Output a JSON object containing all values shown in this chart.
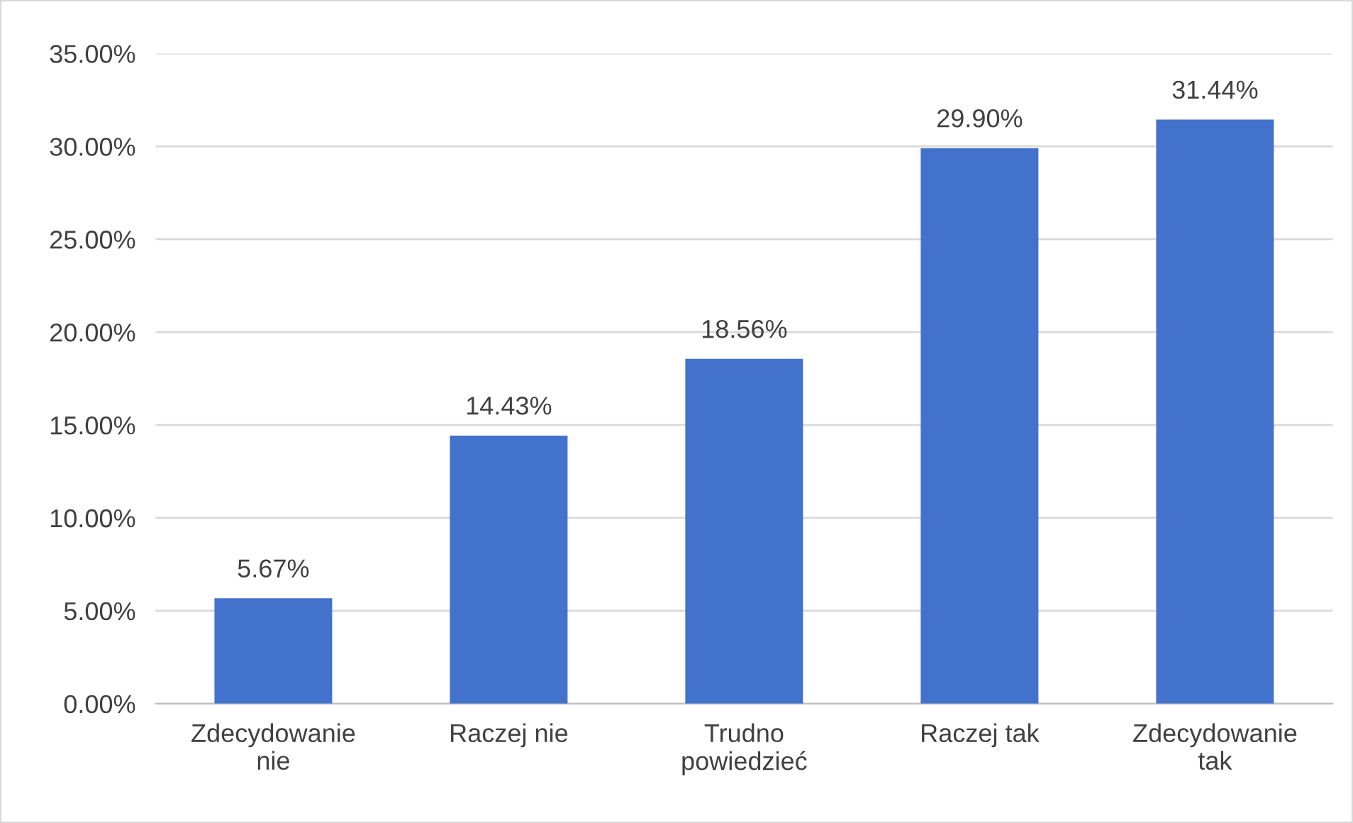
{
  "chart_data": {
    "type": "bar",
    "categories": [
      "Zdecydowanie nie",
      "Raczej nie",
      "Trudno powiedzieć",
      "Raczej tak",
      "Zdecydowanie tak"
    ],
    "values": [
      5.67,
      14.43,
      18.56,
      29.9,
      31.44
    ],
    "value_labels": [
      "5.67%",
      "14.43%",
      "18.56%",
      "29.90%",
      "31.44%"
    ],
    "color": "#4272cc",
    "ylim": [
      0,
      35
    ],
    "yticks": [
      {
        "value": 0,
        "label": "0.00%"
      },
      {
        "value": 5,
        "label": "5.00%"
      },
      {
        "value": 10,
        "label": "10.00%"
      },
      {
        "value": 15,
        "label": "15.00%"
      },
      {
        "value": 20,
        "label": "20.00%"
      },
      {
        "value": 25,
        "label": "25.00%"
      },
      {
        "value": 30,
        "label": "30.00%"
      },
      {
        "value": 35,
        "label": "35.00%"
      }
    ],
    "grid": "y"
  }
}
